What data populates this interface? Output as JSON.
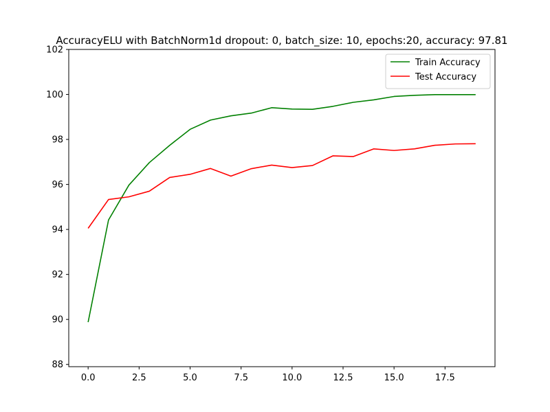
{
  "chart_data": {
    "type": "line",
    "title": "AccuracyELU with BatchNorm1d dropout: 0, batch_size: 10, epochs:20, accuracy: 97.81",
    "xlabel": "",
    "ylabel": "",
    "x": [
      0,
      1,
      2,
      3,
      4,
      5,
      6,
      7,
      8,
      9,
      10,
      11,
      12,
      13,
      14,
      15,
      16,
      17,
      18,
      19
    ],
    "xlim": [
      -0.95,
      19.95
    ],
    "ylim": [
      87.9,
      102
    ],
    "xticks": [
      0.0,
      2.5,
      5.0,
      7.5,
      10.0,
      12.5,
      15.0,
      17.5
    ],
    "xtick_labels": [
      "0.0",
      "2.5",
      "5.0",
      "7.5",
      "10.0",
      "12.5",
      "15.0",
      "17.5"
    ],
    "yticks": [
      88,
      90,
      92,
      94,
      96,
      98,
      100,
      102
    ],
    "ytick_labels": [
      "88",
      "90",
      "92",
      "94",
      "96",
      "98",
      "100",
      "102"
    ],
    "grid": false,
    "legend_position": "top-right",
    "series": [
      {
        "name": "Train Accuracy",
        "color": "#008000",
        "values": [
          89.88,
          94.42,
          95.97,
          96.97,
          97.74,
          98.45,
          98.86,
          99.05,
          99.17,
          99.41,
          99.35,
          99.34,
          99.47,
          99.65,
          99.76,
          99.91,
          99.96,
          99.99,
          99.99,
          99.99
        ]
      },
      {
        "name": "Test Accuracy",
        "color": "#ff0000",
        "values": [
          94.05,
          95.33,
          95.45,
          95.7,
          96.31,
          96.45,
          96.71,
          96.37,
          96.7,
          96.86,
          96.75,
          96.84,
          97.27,
          97.24,
          97.58,
          97.51,
          97.58,
          97.74,
          97.8,
          97.81
        ]
      }
    ]
  }
}
